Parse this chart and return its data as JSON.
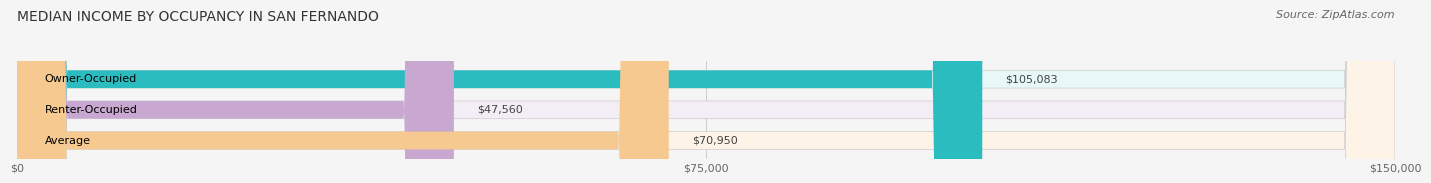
{
  "title": "MEDIAN INCOME BY OCCUPANCY IN SAN FERNANDO",
  "source": "Source: ZipAtlas.com",
  "categories": [
    "Owner-Occupied",
    "Renter-Occupied",
    "Average"
  ],
  "values": [
    105083,
    47560,
    70950
  ],
  "labels": [
    "$105,083",
    "$47,560",
    "$70,950"
  ],
  "bar_colors": [
    "#2bbcbf",
    "#c8a8d0",
    "#f5c990"
  ],
  "bar_bg_colors": [
    "#e8f8f8",
    "#f3eef6",
    "#fdf3e7"
  ],
  "xlim": [
    0,
    150000
  ],
  "xtick_values": [
    0,
    75000,
    150000
  ],
  "xtick_labels": [
    "$0",
    "$75,000",
    "$150,000"
  ],
  "title_fontsize": 10,
  "source_fontsize": 8,
  "label_fontsize": 8,
  "cat_fontsize": 8,
  "background_color": "#f5f5f5"
}
